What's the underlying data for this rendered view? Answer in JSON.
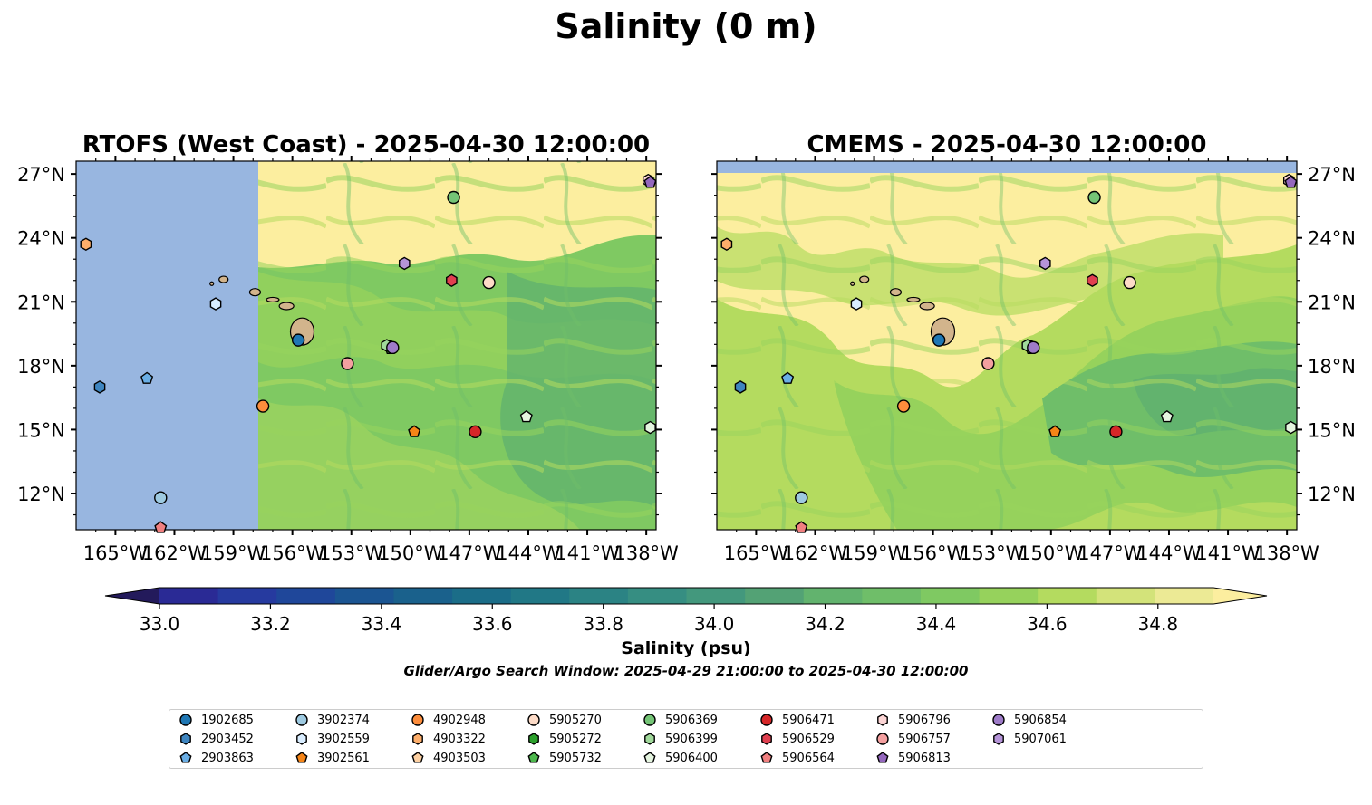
{
  "figure": {
    "suptitle": "Salinity (0 m)",
    "colorbar_label": "Salinity (psu)",
    "search_window": "Glider/Argo Search Window: 2025-04-29 21:00:00 to 2025-04-30 12:00:00"
  },
  "colors": {
    "land": "#d2b48c",
    "no_data": "#98b6e0",
    "colormap": [
      "#231a5b",
      "#2a2a95",
      "#263a9f",
      "#1f479a",
      "#1b5592",
      "#1a618c",
      "#1b6d88",
      "#217886",
      "#2b8384",
      "#368e82",
      "#43987d",
      "#53a275",
      "#62b36e",
      "#6fbe69",
      "#7fc962",
      "#96d25c",
      "#b4db5f",
      "#d3e37a",
      "#ecea95",
      "#fcee9f"
    ]
  },
  "chart_data": [
    {
      "type": "heatmap",
      "title": "RTOFS (West Coast) - 2025-04-30 12:00:00",
      "xlim": [
        -167,
        -137.5
      ],
      "ylim": [
        10.3,
        27.6
      ],
      "x_ticks": [
        "165°W",
        "162°W",
        "159°W",
        "156°W",
        "153°W",
        "150°W",
        "147°W",
        "144°W",
        "141°W",
        "138°W"
      ],
      "y_ticks": [
        "27°N",
        "24°N",
        "21°N",
        "18°N",
        "15°N",
        "12°N"
      ],
      "y_tick_side": "right",
      "data_extent_west_lon": -157.7,
      "field_description": "surface salinity, mostly 34.4-34.9 psu; values about 34.9 north of 22°N"
    },
    {
      "type": "heatmap",
      "title": "CMEMS - 2025-04-30 12:00:00",
      "xlim": [
        -167,
        -137.5
      ],
      "ylim": [
        10.3,
        27.6
      ],
      "x_ticks": [
        "165°W",
        "162°W",
        "159°W",
        "156°W",
        "153°W",
        "150°W",
        "147°W",
        "144°W",
        "141°W",
        "138°W"
      ],
      "y_ticks": [
        "27°N",
        "24°N",
        "21°N",
        "18°N",
        "15°N",
        "12°N"
      ],
      "y_tick_side": "right",
      "data_extent_north_lat": 27.0,
      "field_description": "surface salinity 34.3-34.9 psu; saltier north of 22°N and west of 157°W"
    },
    {
      "type": "colorbar",
      "levels": [
        32.9,
        33.0,
        33.1,
        33.2,
        33.3,
        33.4,
        33.5,
        33.6,
        33.7,
        33.8,
        33.9,
        34.0,
        34.1,
        34.2,
        34.3,
        34.4,
        34.5,
        34.6,
        34.7,
        34.8,
        34.9
      ],
      "ticks": [
        "33.0",
        "33.2",
        "33.4",
        "33.6",
        "33.8",
        "34.0",
        "34.2",
        "34.4",
        "34.6",
        "34.8"
      ],
      "extend": "both",
      "label": "Salinity (psu)"
    },
    {
      "type": "scatter",
      "description": "Glider/Argo float positions plotted on both maps",
      "points": [
        {
          "id": "1902685",
          "lon": -155.7,
          "lat": 19.2,
          "marker": "circle",
          "color": "#1f77b4"
        },
        {
          "id": "2903452",
          "lon": -165.8,
          "lat": 17.0,
          "marker": "hexagon",
          "color": "#3e85c0"
        },
        {
          "id": "2903863",
          "lon": -163.4,
          "lat": 17.4,
          "marker": "pentagon",
          "color": "#6aaee5"
        },
        {
          "id": "3902374",
          "lon": -162.7,
          "lat": 11.8,
          "marker": "circle",
          "color": "#9ecae1"
        },
        {
          "id": "3902559",
          "lon": -159.9,
          "lat": 20.9,
          "marker": "hexagon",
          "color": "#d9edff"
        },
        {
          "id": "3902561",
          "lon": -149.8,
          "lat": 14.9,
          "marker": "pentagon",
          "color": "#f58518"
        },
        {
          "id": "4902948",
          "lon": -157.5,
          "lat": 16.1,
          "marker": "circle",
          "color": "#fd8d3c"
        },
        {
          "id": "4903322",
          "lon": -166.5,
          "lat": 23.7,
          "marker": "hexagon",
          "color": "#fdae6b"
        },
        {
          "id": "5905270",
          "lon": -146.0,
          "lat": 21.9,
          "marker": "circle",
          "color": "#fddbc7"
        },
        {
          "id": "5905272",
          "lon": -151.0,
          "lat": 18.9,
          "marker": "hexagon",
          "color": "#2ca02c"
        },
        {
          "id": "5905732",
          "lon": -151.0,
          "lat": 18.8,
          "marker": "pentagon",
          "color": "#4db84d"
        },
        {
          "id": "5906369",
          "lon": -147.8,
          "lat": 25.9,
          "marker": "circle",
          "color": "#74c476"
        },
        {
          "id": "5906399",
          "lon": -151.2,
          "lat": 18.95,
          "marker": "hexagon",
          "color": "#a1d99b"
        },
        {
          "id": "5906400",
          "lon": -144.1,
          "lat": 15.6,
          "marker": "pentagon",
          "color": "#e5f5e0"
        },
        {
          "id": "5906471",
          "lon": -146.7,
          "lat": 14.9,
          "marker": "circle",
          "color": "#d62728"
        },
        {
          "id": "5906529",
          "lon": -147.9,
          "lat": 22.0,
          "marker": "hexagon",
          "color": "#e04050"
        },
        {
          "id": "5906564",
          "lon": -162.7,
          "lat": 10.4,
          "marker": "pentagon",
          "color": "#f08080"
        },
        {
          "id": "5906757",
          "lon": -153.2,
          "lat": 18.1,
          "marker": "circle",
          "color": "#f4a0a0"
        },
        {
          "id": "5906796",
          "lon": -137.9,
          "lat": 26.7,
          "marker": "hexagon",
          "color": "#fcd5d5"
        },
        {
          "id": "5906813",
          "lon": -137.8,
          "lat": 26.6,
          "marker": "pentagon",
          "color": "#9467bd"
        },
        {
          "id": "5906854",
          "lon": -150.9,
          "lat": 18.85,
          "marker": "circle",
          "color": "#9e7bc8"
        },
        {
          "id": "5907061",
          "lon": -150.3,
          "lat": 22.8,
          "marker": "hexagon",
          "color": "#b594d8"
        },
        {
          "id": "extra-hex",
          "lon": -137.8,
          "lat": 15.1,
          "marker": "hexagon",
          "color": "#e5f5e0",
          "legend": false
        }
      ]
    }
  ],
  "legend": {
    "items": [
      {
        "label": "1902685",
        "marker": "circle",
        "color": "#1f77b4"
      },
      {
        "label": "2903452",
        "marker": "hexagon",
        "color": "#3e85c0"
      },
      {
        "label": "2903863",
        "marker": "pentagon",
        "color": "#6aaee5"
      },
      {
        "label": "3902374",
        "marker": "circle",
        "color": "#9ecae1"
      },
      {
        "label": "3902559",
        "marker": "hexagon",
        "color": "#d9edff"
      },
      {
        "label": "3902561",
        "marker": "pentagon",
        "color": "#f58518"
      },
      {
        "label": "4902948",
        "marker": "circle",
        "color": "#fd8d3c"
      },
      {
        "label": "4903322",
        "marker": "hexagon",
        "color": "#fdae6b"
      },
      {
        "label": "4903503",
        "marker": "pentagon",
        "color": "#fdd0a2"
      },
      {
        "label": "5905270",
        "marker": "circle",
        "color": "#fddbc7"
      },
      {
        "label": "5905272",
        "marker": "hexagon",
        "color": "#2ca02c"
      },
      {
        "label": "5905732",
        "marker": "pentagon",
        "color": "#4db84d"
      },
      {
        "label": "5906369",
        "marker": "circle",
        "color": "#74c476"
      },
      {
        "label": "5906399",
        "marker": "hexagon",
        "color": "#a1d99b"
      },
      {
        "label": "5906400",
        "marker": "pentagon",
        "color": "#e5f5e0"
      },
      {
        "label": "5906471",
        "marker": "circle",
        "color": "#d62728"
      },
      {
        "label": "5906529",
        "marker": "hexagon",
        "color": "#e04050"
      },
      {
        "label": "5906564",
        "marker": "pentagon",
        "color": "#f08080"
      },
      {
        "label": "5906796",
        "marker": "hexagon",
        "color": "#fcd5d5"
      },
      {
        "label": "5906757",
        "marker": "circle",
        "color": "#f4a0a0"
      },
      {
        "label": "5906813",
        "marker": "pentagon",
        "color": "#9467bd"
      },
      {
        "label": "5906854",
        "marker": "circle",
        "color": "#9e7bc8"
      },
      {
        "label": "5907061",
        "marker": "hexagon",
        "color": "#b594d8"
      }
    ]
  }
}
